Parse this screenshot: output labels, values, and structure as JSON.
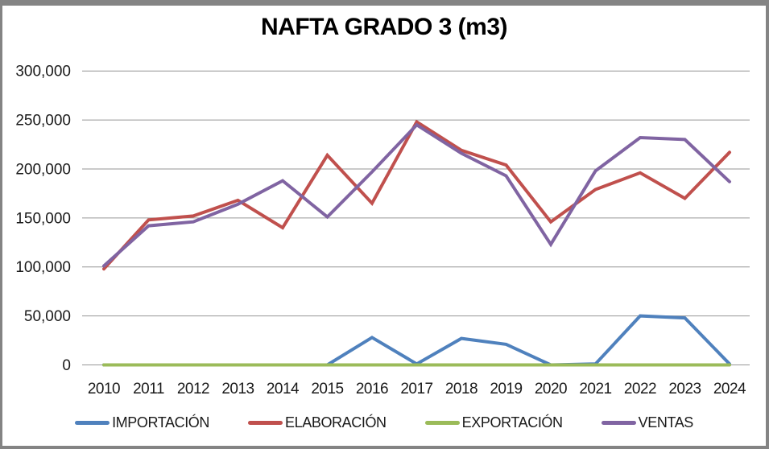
{
  "frame": {
    "border_color": "#848484",
    "background_color": "#ffffff"
  },
  "chart_data": {
    "type": "line",
    "title": "NAFTA GRADO 3 (m3)",
    "xlabel": "",
    "ylabel": "",
    "categories": [
      "2010",
      "2011",
      "2012",
      "2013",
      "2014",
      "2015",
      "2016",
      "2017",
      "2018",
      "2019",
      "2020",
      "2021",
      "2022",
      "2023",
      "2024"
    ],
    "series": [
      {
        "name": "IMPORTACIÓN",
        "color": "#4F81BD",
        "values": [
          0,
          0,
          0,
          0,
          0,
          0,
          28000,
          1000,
          27000,
          21000,
          0,
          1000,
          50000,
          48000,
          1000
        ]
      },
      {
        "name": "ELABORACIÓN",
        "color": "#C0504D",
        "values": [
          98000,
          148000,
          152000,
          168000,
          140000,
          214000,
          165000,
          248000,
          219000,
          204000,
          146000,
          179000,
          196000,
          170000,
          217000
        ]
      },
      {
        "name": "EXPORTACIÓN",
        "color": "#9BBB59",
        "values": [
          0,
          0,
          0,
          0,
          0,
          0,
          0,
          0,
          0,
          0,
          0,
          0,
          0,
          0,
          0
        ]
      },
      {
        "name": "VENTAS",
        "color": "#8064A2",
        "values": [
          101000,
          142000,
          146000,
          164000,
          188000,
          151000,
          197000,
          245000,
          216000,
          193000,
          123000,
          198000,
          232000,
          230000,
          187000
        ]
      }
    ],
    "ylim": [
      0,
      300000
    ],
    "y_tick_step": 50000,
    "y_tick_labels": [
      "0",
      "50,000",
      "100,000",
      "150,000",
      "200,000",
      "250,000",
      "300,000"
    ],
    "grid": true,
    "gridline_color": "#969696",
    "axis_text_color": "#1a1a1a",
    "legend_position": "bottom",
    "line_width": 4
  }
}
